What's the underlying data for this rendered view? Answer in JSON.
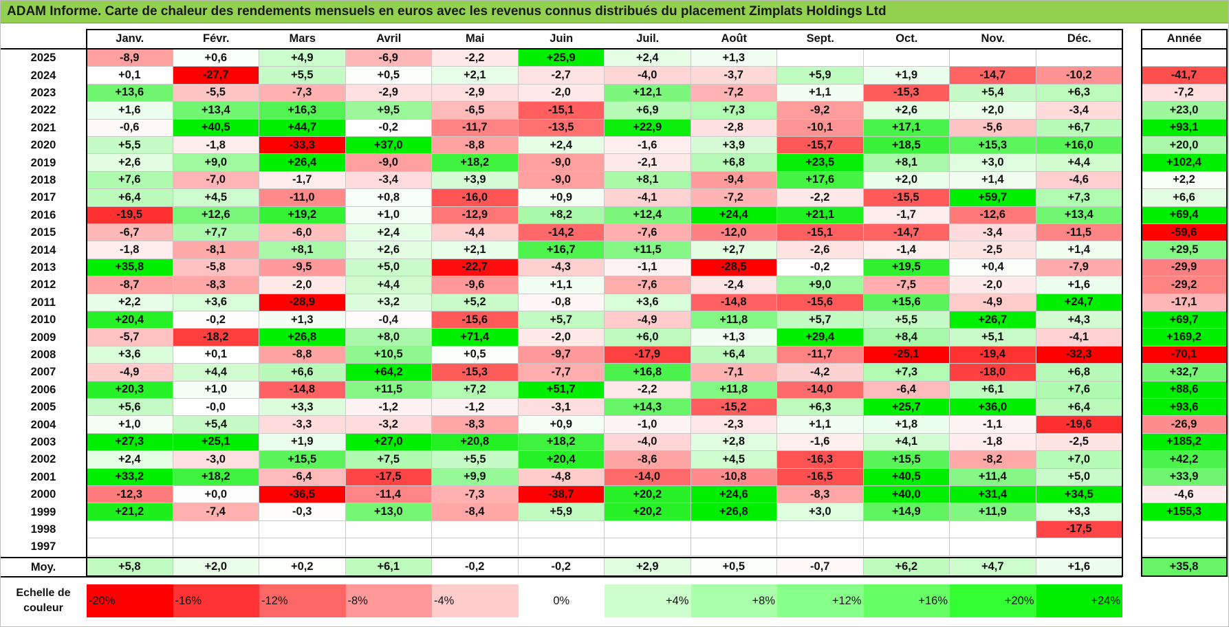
{
  "title": "ADAM Informe. Carte de chaleur des rendements mensuels en euros avec les revenus connus distribués du placement Zimplats Holdings Ltd",
  "chart_data": {
    "type": "heatmap",
    "columns": [
      "Janv.",
      "Févr.",
      "Mars",
      "Avril",
      "Mai",
      "Juin",
      "Juil.",
      "Août",
      "Sept.",
      "Oct.",
      "Nov.",
      "Déc."
    ],
    "year_column": "Année",
    "rows": [
      {
        "year": "2025",
        "values": [
          "-8,9",
          "+0,6",
          "+4,9",
          "-6,9",
          "-2,2",
          "+25,9",
          "+2,4",
          "+1,3",
          "",
          "",
          "",
          ""
        ],
        "annual": ""
      },
      {
        "year": "2024",
        "values": [
          "+0,1",
          "-27,7",
          "+5,5",
          "+0,5",
          "+2,1",
          "-2,7",
          "-4,0",
          "-3,7",
          "+5,9",
          "+1,9",
          "-14,7",
          "-10,2"
        ],
        "annual": "-41,7"
      },
      {
        "year": "2023",
        "values": [
          "+13,6",
          "-5,5",
          "-7,3",
          "-2,9",
          "-2,9",
          "-2,0",
          "+12,1",
          "-7,2",
          "+1,1",
          "-15,3",
          "+5,4",
          "+6,3"
        ],
        "annual": "-7,2"
      },
      {
        "year": "2022",
        "values": [
          "+1,6",
          "+13,4",
          "+16,3",
          "+9,5",
          "-6,5",
          "-15,1",
          "+6,9",
          "+7,3",
          "-9,2",
          "+2,6",
          "+2,0",
          "-3,4"
        ],
        "annual": "+23,0"
      },
      {
        "year": "2021",
        "values": [
          "-0,6",
          "+40,5",
          "+44,7",
          "-0,2",
          "-11,7",
          "-13,5",
          "+22,9",
          "-2,8",
          "-10,1",
          "+17,1",
          "-5,6",
          "+6,7"
        ],
        "annual": "+93,1"
      },
      {
        "year": "2020",
        "values": [
          "+5,5",
          "-1,8",
          "-33,3",
          "+37,0",
          "-8,8",
          "+2,4",
          "-1,6",
          "+3,9",
          "-15,7",
          "+18,5",
          "+15,3",
          "+16,0"
        ],
        "annual": "+20,0"
      },
      {
        "year": "2019",
        "values": [
          "+2,6",
          "+9,0",
          "+26,4",
          "-9,0",
          "+18,2",
          "-9,0",
          "-2,1",
          "+6,8",
          "+23,5",
          "+8,1",
          "+3,0",
          "+4,4"
        ],
        "annual": "+102,4"
      },
      {
        "year": "2018",
        "values": [
          "+7,6",
          "-7,0",
          "-1,7",
          "-3,4",
          "+3,9",
          "-9,0",
          "+8,1",
          "-9,4",
          "+17,6",
          "+2,0",
          "+1,4",
          "-4,6"
        ],
        "annual": "+2,2"
      },
      {
        "year": "2017",
        "values": [
          "+6,4",
          "+4,5",
          "-11,0",
          "+0,8",
          "-16,0",
          "+0,9",
          "-4,1",
          "-7,2",
          "-2,2",
          "-15,5",
          "+59,7",
          "+7,3"
        ],
        "annual": "+6,6"
      },
      {
        "year": "2016",
        "values": [
          "-19,5",
          "+12,6",
          "+19,2",
          "+1,0",
          "-12,9",
          "+8,2",
          "+12,4",
          "+24,4",
          "+21,1",
          "-1,7",
          "-12,6",
          "+13,4"
        ],
        "annual": "+69,4"
      },
      {
        "year": "2015",
        "values": [
          "-6,7",
          "+7,7",
          "-6,0",
          "+2,4",
          "-4,4",
          "-14,2",
          "-7,6",
          "-12,0",
          "-15,1",
          "-14,7",
          "-3,4",
          "-11,5"
        ],
        "annual": "-59,6"
      },
      {
        "year": "2014",
        "values": [
          "-1,8",
          "-8,1",
          "+8,1",
          "+2,6",
          "+2,1",
          "+16,7",
          "+11,5",
          "+2,7",
          "-2,6",
          "-1,4",
          "-2,5",
          "+1,4"
        ],
        "annual": "+29,5"
      },
      {
        "year": "2013",
        "values": [
          "+35,8",
          "-5,8",
          "-9,5",
          "+5,0",
          "-22,7",
          "-4,3",
          "-1,1",
          "-28,5",
          "-0,2",
          "+19,5",
          "+0,4",
          "-7,9"
        ],
        "annual": "-29,9"
      },
      {
        "year": "2012",
        "values": [
          "-8,7",
          "-8,3",
          "-2,0",
          "+4,4",
          "-9,6",
          "+1,1",
          "-7,6",
          "-2,4",
          "+9,0",
          "-7,5",
          "-2,0",
          "+1,6"
        ],
        "annual": "-29,2"
      },
      {
        "year": "2011",
        "values": [
          "+2,2",
          "+3,6",
          "-28,9",
          "+3,2",
          "+5,2",
          "-0,8",
          "+3,6",
          "-14,8",
          "-15,6",
          "+15,6",
          "-4,9",
          "+24,7"
        ],
        "annual": "-17,1"
      },
      {
        "year": "2010",
        "values": [
          "+20,4",
          "-0,2",
          "+1,3",
          "-0,4",
          "-15,6",
          "+5,7",
          "-4,9",
          "+11,8",
          "+5,7",
          "+5,5",
          "+26,7",
          "+4,3"
        ],
        "annual": "+69,7"
      },
      {
        "year": "2009",
        "values": [
          "-5,7",
          "-18,2",
          "+26,8",
          "+8,0",
          "+71,4",
          "-2,0",
          "+6,0",
          "+1,3",
          "+29,4",
          "+8,4",
          "+5,1",
          "-4,1"
        ],
        "annual": "+169,2"
      },
      {
        "year": "2008",
        "values": [
          "+3,6",
          "+0,1",
          "-8,8",
          "+10,5",
          "+0,5",
          "-9,7",
          "-17,9",
          "+6,4",
          "-11,7",
          "-25,1",
          "-19,4",
          "-32,3"
        ],
        "annual": "-70,1"
      },
      {
        "year": "2007",
        "values": [
          "-4,9",
          "+4,4",
          "+6,6",
          "+64,2",
          "-15,3",
          "-7,7",
          "+16,8",
          "-7,1",
          "-4,2",
          "+7,3",
          "-18,0",
          "+6,8"
        ],
        "annual": "+32,7"
      },
      {
        "year": "2006",
        "values": [
          "+20,3",
          "+1,0",
          "-14,8",
          "+11,5",
          "+7,2",
          "+51,7",
          "-2,2",
          "+11,8",
          "-14,0",
          "-6,4",
          "+6,1",
          "+7,6"
        ],
        "annual": "+88,6"
      },
      {
        "year": "2005",
        "values": [
          "+5,6",
          "-0,0",
          "+3,3",
          "-1,2",
          "-1,2",
          "-3,1",
          "+14,3",
          "-15,2",
          "+6,3",
          "+25,7",
          "+36,0",
          "+6,4"
        ],
        "annual": "+93,6"
      },
      {
        "year": "2004",
        "values": [
          "+1,0",
          "+5,4",
          "-3,3",
          "-3,2",
          "-8,3",
          "+0,9",
          "-1,0",
          "-2,3",
          "+1,1",
          "+1,8",
          "-1,1",
          "-19,6"
        ],
        "annual": "-26,9"
      },
      {
        "year": "2003",
        "values": [
          "+27,3",
          "+25,1",
          "+1,9",
          "+27,0",
          "+20,8",
          "+18,2",
          "-4,0",
          "+2,8",
          "-1,6",
          "+4,1",
          "-1,8",
          "-2,5"
        ],
        "annual": "+185,2"
      },
      {
        "year": "2002",
        "values": [
          "+2,4",
          "-3,0",
          "+15,5",
          "+7,5",
          "+5,5",
          "+20,4",
          "-8,6",
          "+4,5",
          "-16,3",
          "+15,5",
          "-8,2",
          "+7,0"
        ],
        "annual": "+42,2"
      },
      {
        "year": "2001",
        "values": [
          "+33,2",
          "+18,2",
          "-6,4",
          "-17,5",
          "+9,9",
          "-4,8",
          "-14,0",
          "-10,8",
          "-16,5",
          "+40,5",
          "+11,4",
          "+5,0"
        ],
        "annual": "+33,9"
      },
      {
        "year": "2000",
        "values": [
          "-12,3",
          "+0,0",
          "-36,5",
          "-11,4",
          "-7,3",
          "-38,7",
          "+20,2",
          "+24,6",
          "-8,3",
          "+40,0",
          "+31,4",
          "+34,5"
        ],
        "annual": "-4,6"
      },
      {
        "year": "1999",
        "values": [
          "+21,2",
          "-7,4",
          "-0,3",
          "+13,0",
          "-8,4",
          "+5,9",
          "+20,2",
          "+26,8",
          "+3,0",
          "+14,9",
          "+11,9",
          "+3,3"
        ],
        "annual": "+155,3"
      },
      {
        "year": "1998",
        "values": [
          "",
          "",
          "",
          "",
          "",
          "",
          "",
          "",
          "",
          "",
          "",
          "-17,5"
        ],
        "annual": ""
      },
      {
        "year": "1997",
        "values": [
          "",
          "",
          "",
          "",
          "",
          "",
          "",
          "",
          "",
          "",
          "",
          ""
        ],
        "annual": ""
      }
    ],
    "average": {
      "label": "Moy.",
      "values": [
        "+5,8",
        "+2,0",
        "+0,2",
        "+6,1",
        "-0,2",
        "-0,2",
        "+2,9",
        "+0,5",
        "-0,7",
        "+6,2",
        "+4,7",
        "+1,6"
      ],
      "annual": "+35,8"
    },
    "scale": {
      "label_line1": "Echelle de",
      "label_line2": "couleur",
      "items": [
        {
          "label": "-20%",
          "color": "#ff0000"
        },
        {
          "label": "-16%",
          "color": "#ff3333"
        },
        {
          "label": "-12%",
          "color": "#ff6666"
        },
        {
          "label": "-8%",
          "color": "#ff9999"
        },
        {
          "label": "-4%",
          "color": "#ffcccc"
        },
        {
          "label": "0%",
          "color": "#ffffff"
        },
        {
          "label": "+4%",
          "color": "#ccffcc"
        },
        {
          "label": "+8%",
          "color": "#aaffaa"
        },
        {
          "label": "+12%",
          "color": "#88ff88"
        },
        {
          "label": "+16%",
          "color": "#66ff66"
        },
        {
          "label": "+20%",
          "color": "#33ff33"
        },
        {
          "label": "+24%",
          "color": "#00ee00"
        }
      ]
    },
    "colors": {
      "negative": "#ff0000",
      "neutral": "#ffffff",
      "positive": "#00ee00",
      "title_bg": "#92d050"
    }
  }
}
